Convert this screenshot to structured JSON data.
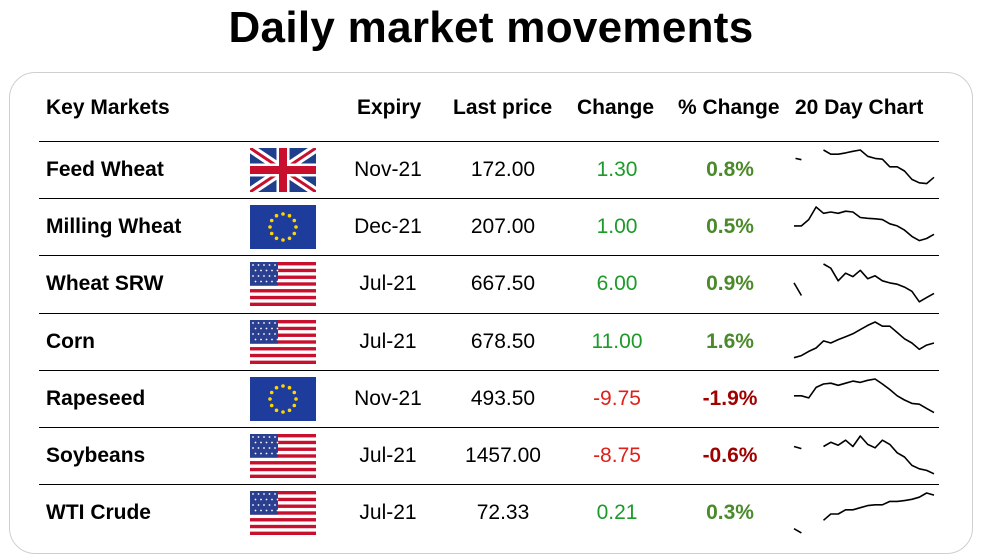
{
  "title": "Daily market movements",
  "headers": {
    "market": "Key Markets",
    "expiry": "Expiry",
    "last": "Last price",
    "change": "Change",
    "pct": "% Change",
    "chart": "20 Day Chart"
  },
  "colors": {
    "positive": "#1e9a2b",
    "negative": "#e0201b",
    "pct_positive": "#4a8a2a",
    "pct_negative": "#a00000"
  },
  "rows": [
    {
      "name": "Feed Wheat",
      "flag": "uk-flag-icon",
      "expiry": "Nov-21",
      "last": "172.00",
      "change": "1.30",
      "pct": "0.8%",
      "dir": "up",
      "spark": [
        [
          0.2,
          0.8
        ],
        [
          1,
          0.77
        ],
        [
          null,
          null
        ],
        [
          4,
          1.0
        ],
        [
          5,
          0.9
        ],
        [
          6,
          0.9
        ],
        [
          7,
          0.93
        ],
        [
          8,
          0.97
        ],
        [
          9,
          1.0
        ],
        [
          10,
          0.85
        ],
        [
          11,
          0.8
        ],
        [
          12,
          0.78
        ],
        [
          13,
          0.6
        ],
        [
          14,
          0.6
        ],
        [
          15,
          0.5
        ],
        [
          16,
          0.3
        ],
        [
          17,
          0.22
        ],
        [
          18,
          0.2
        ],
        [
          19,
          0.35
        ]
      ]
    },
    {
      "name": "Milling Wheat",
      "flag": "eu-flag-icon",
      "expiry": "Dec-21",
      "last": "207.00",
      "change": "1.00",
      "pct": "0.5%",
      "dir": "up",
      "spark": [
        [
          0,
          0.55
        ],
        [
          1,
          0.55
        ],
        [
          2,
          0.7
        ],
        [
          3,
          1.0
        ],
        [
          4,
          0.85
        ],
        [
          5,
          0.88
        ],
        [
          6,
          0.85
        ],
        [
          7,
          0.9
        ],
        [
          8,
          0.88
        ],
        [
          9,
          0.75
        ],
        [
          10,
          0.73
        ],
        [
          11,
          0.72
        ],
        [
          12,
          0.7
        ],
        [
          13,
          0.6
        ],
        [
          14,
          0.55
        ],
        [
          15,
          0.45
        ],
        [
          16,
          0.3
        ],
        [
          17,
          0.2
        ],
        [
          18,
          0.25
        ],
        [
          19,
          0.35
        ]
      ]
    },
    {
      "name": "Wheat SRW",
      "flag": "us-flag-icon",
      "expiry": "Jul-21",
      "last": "667.50",
      "change": "6.00",
      "pct": "0.9%",
      "dir": "up",
      "spark": [
        [
          0,
          0.55
        ],
        [
          1,
          0.25
        ],
        [
          null,
          null
        ],
        [
          4,
          1.0
        ],
        [
          5,
          0.9
        ],
        [
          6,
          0.6
        ],
        [
          7,
          0.78
        ],
        [
          8,
          0.7
        ],
        [
          9,
          0.85
        ],
        [
          10,
          0.65
        ],
        [
          11,
          0.72
        ],
        [
          12,
          0.6
        ],
        [
          13,
          0.55
        ],
        [
          14,
          0.52
        ],
        [
          15,
          0.45
        ],
        [
          16,
          0.35
        ],
        [
          17,
          0.1
        ],
        [
          18,
          0.2
        ],
        [
          19,
          0.3
        ]
      ]
    },
    {
      "name": "Corn",
      "flag": "us-flag-icon",
      "expiry": "Jul-21",
      "last": "678.50",
      "change": "11.00",
      "pct": "1.6%",
      "dir": "up",
      "spark": [
        [
          0,
          0.15
        ],
        [
          1,
          0.2
        ],
        [
          2,
          0.3
        ],
        [
          3,
          0.38
        ],
        [
          4,
          0.55
        ],
        [
          5,
          0.5
        ],
        [
          6,
          0.58
        ],
        [
          7,
          0.65
        ],
        [
          8,
          0.72
        ],
        [
          9,
          0.82
        ],
        [
          10,
          0.92
        ],
        [
          11,
          1.0
        ],
        [
          12,
          0.9
        ],
        [
          13,
          0.9
        ],
        [
          14,
          0.75
        ],
        [
          15,
          0.6
        ],
        [
          16,
          0.5
        ],
        [
          17,
          0.35
        ],
        [
          18,
          0.45
        ],
        [
          19,
          0.5
        ]
      ]
    },
    {
      "name": "Rapeseed",
      "flag": "eu-flag-icon",
      "expiry": "Nov-21",
      "last": "493.50",
      "change": "-9.75",
      "pct": "-1.9%",
      "dir": "down",
      "spark": [
        [
          0,
          0.6
        ],
        [
          1,
          0.6
        ],
        [
          2,
          0.55
        ],
        [
          3,
          0.8
        ],
        [
          4,
          0.88
        ],
        [
          5,
          0.9
        ],
        [
          6,
          0.85
        ],
        [
          7,
          0.9
        ],
        [
          8,
          0.95
        ],
        [
          9,
          0.92
        ],
        [
          10,
          0.97
        ],
        [
          11,
          1.0
        ],
        [
          12,
          0.88
        ],
        [
          13,
          0.75
        ],
        [
          14,
          0.6
        ],
        [
          15,
          0.5
        ],
        [
          16,
          0.42
        ],
        [
          17,
          0.4
        ],
        [
          18,
          0.3
        ],
        [
          19,
          0.2
        ]
      ]
    },
    {
      "name": "Soybeans",
      "flag": "us-flag-icon",
      "expiry": "Jul-21",
      "last": "1457.00",
      "change": "-8.75",
      "pct": "-0.6%",
      "dir": "down",
      "spark": [
        [
          0,
          0.75
        ],
        [
          1,
          0.7
        ],
        [
          null,
          null
        ],
        [
          4,
          0.75
        ],
        [
          5,
          0.85
        ],
        [
          6,
          0.78
        ],
        [
          7,
          0.9
        ],
        [
          8,
          0.75
        ],
        [
          9,
          1.0
        ],
        [
          10,
          0.8
        ],
        [
          11,
          0.72
        ],
        [
          12,
          0.9
        ],
        [
          13,
          0.8
        ],
        [
          14,
          0.6
        ],
        [
          15,
          0.5
        ],
        [
          16,
          0.3
        ],
        [
          17,
          0.22
        ],
        [
          18,
          0.18
        ],
        [
          19,
          0.1
        ]
      ]
    },
    {
      "name": "WTI Crude",
      "flag": "us-flag-icon",
      "expiry": "Jul-21",
      "last": "72.33",
      "change": "0.21",
      "pct": "0.3%",
      "dir": "up",
      "spark": [
        [
          0,
          0.15
        ],
        [
          1,
          0.05
        ],
        [
          null,
          null
        ],
        [
          4,
          0.35
        ],
        [
          5,
          0.5
        ],
        [
          6,
          0.5
        ],
        [
          7,
          0.6
        ],
        [
          8,
          0.6
        ],
        [
          9,
          0.65
        ],
        [
          10,
          0.7
        ],
        [
          11,
          0.72
        ],
        [
          12,
          0.72
        ],
        [
          13,
          0.8
        ],
        [
          14,
          0.8
        ],
        [
          15,
          0.82
        ],
        [
          16,
          0.85
        ],
        [
          17,
          0.9
        ],
        [
          18,
          1.0
        ],
        [
          19,
          0.95
        ]
      ]
    }
  ]
}
